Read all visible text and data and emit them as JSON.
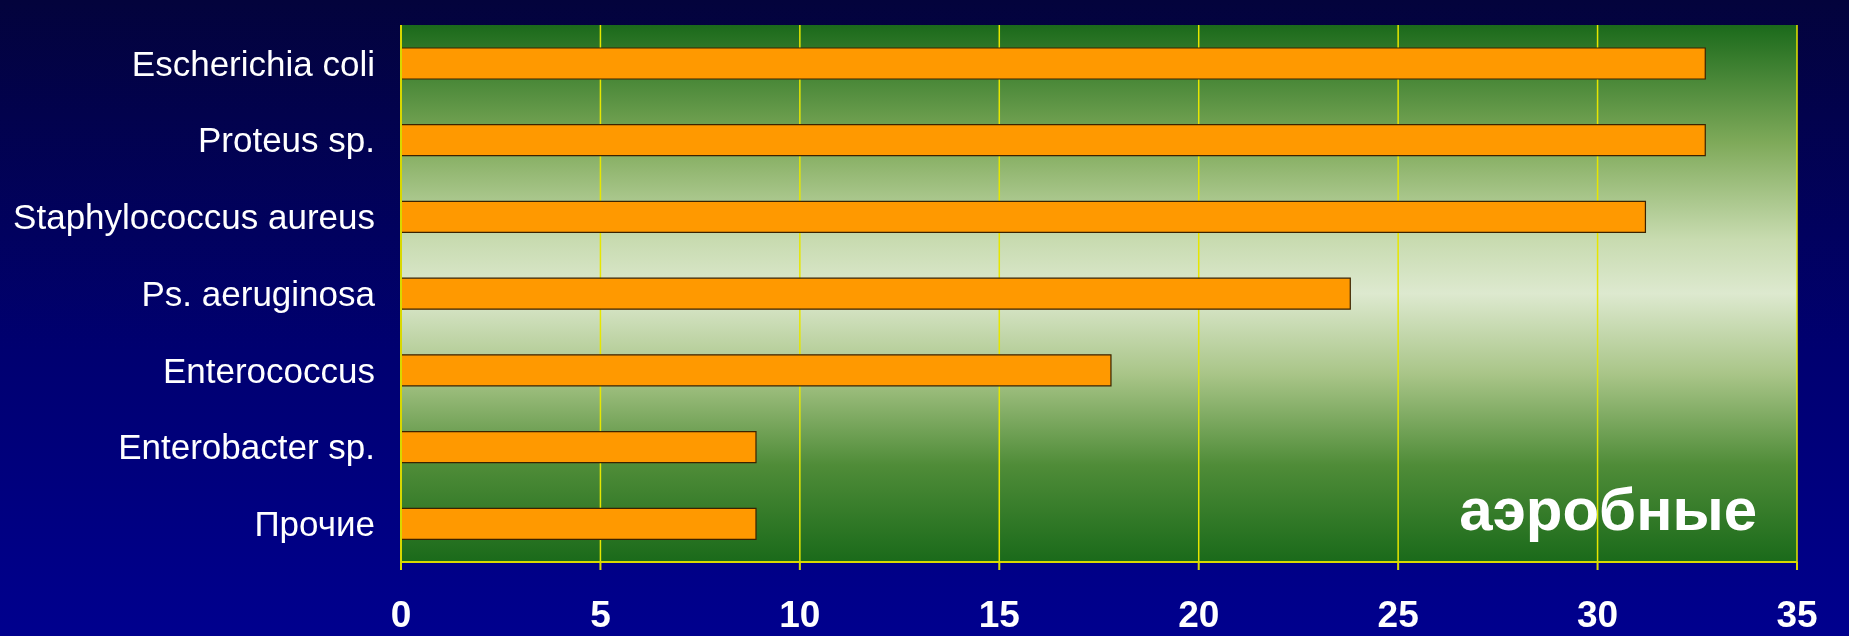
{
  "chart_data": {
    "type": "bar",
    "orientation": "horizontal",
    "categories": [
      "Escherichia coli",
      "Proteus sp.",
      "Staphylococcus aureus",
      "Ps. aeruginosa",
      "Enterococcus",
      "Enterobacter sp.",
      "Прочие"
    ],
    "values": [
      32.7,
      32.7,
      31.2,
      23.8,
      17.8,
      8.9,
      8.9
    ],
    "color": "#ff9900",
    "xlim": [
      0,
      35
    ],
    "xticks": [
      0,
      5,
      10,
      15,
      20,
      25,
      30,
      35
    ],
    "grid": "x",
    "annotations": [
      "аэробные"
    ]
  }
}
